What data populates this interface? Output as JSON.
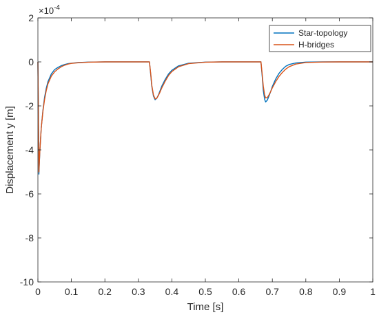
{
  "chart_data": {
    "type": "line",
    "title": "",
    "xlabel": "Time [s]",
    "ylabel": "Displacement y [m]",
    "xlim": [
      0,
      1
    ],
    "ylim": [
      -10,
      2
    ],
    "y_exponent_label": "×10",
    "y_exponent_power": "-4",
    "xticks": [
      0,
      0.1,
      0.2,
      0.3,
      0.4,
      0.5,
      0.6,
      0.7,
      0.8,
      0.9,
      1
    ],
    "xtick_labels": [
      "0",
      "0.1",
      "0.2",
      "0.3",
      "0.4",
      "0.5",
      "0.6",
      "0.7",
      "0.8",
      "0.9",
      "1"
    ],
    "yticks": [
      2,
      0,
      -2,
      -4,
      -6,
      -8,
      -10
    ],
    "ytick_labels": [
      "2",
      "0",
      "-2",
      "-4",
      "-6",
      "-8",
      "-10"
    ],
    "grid": false,
    "legend_position": "top-right",
    "series": [
      {
        "name": "Star-topology",
        "color": "#0072BD",
        "x": [
          0,
          0.003,
          0.006,
          0.01,
          0.015,
          0.02,
          0.025,
          0.03,
          0.04,
          0.05,
          0.06,
          0.07,
          0.08,
          0.09,
          0.1,
          0.12,
          0.15,
          0.2,
          0.25,
          0.3,
          0.333,
          0.337,
          0.34,
          0.345,
          0.35,
          0.355,
          0.36,
          0.365,
          0.37,
          0.38,
          0.39,
          0.4,
          0.42,
          0.45,
          0.5,
          0.55,
          0.6,
          0.65,
          0.666,
          0.67,
          0.673,
          0.677,
          0.68,
          0.685,
          0.69,
          0.695,
          0.7,
          0.71,
          0.72,
          0.73,
          0.74,
          0.75,
          0.77,
          0.8,
          0.85,
          0.9,
          1.0
        ],
        "y": [
          0,
          -5.1,
          -4.0,
          -3.0,
          -2.2,
          -1.6,
          -1.2,
          -0.9,
          -0.55,
          -0.35,
          -0.25,
          -0.17,
          -0.12,
          -0.08,
          -0.06,
          -0.03,
          -0.01,
          0,
          0,
          0,
          0,
          -0.6,
          -1.1,
          -1.55,
          -1.72,
          -1.65,
          -1.5,
          -1.3,
          -1.1,
          -0.8,
          -0.55,
          -0.38,
          -0.18,
          -0.06,
          -0.01,
          0,
          0,
          0,
          0,
          -0.7,
          -1.3,
          -1.7,
          -1.82,
          -1.74,
          -1.55,
          -1.35,
          -1.12,
          -0.78,
          -0.52,
          -0.34,
          -0.2,
          -0.12,
          -0.05,
          -0.01,
          0,
          0,
          0
        ]
      },
      {
        "name": "H-bridges",
        "color": "#D95319",
        "x": [
          0,
          0.003,
          0.006,
          0.01,
          0.015,
          0.02,
          0.025,
          0.03,
          0.04,
          0.05,
          0.06,
          0.07,
          0.08,
          0.09,
          0.1,
          0.12,
          0.15,
          0.2,
          0.25,
          0.3,
          0.333,
          0.337,
          0.34,
          0.345,
          0.35,
          0.355,
          0.36,
          0.365,
          0.37,
          0.38,
          0.39,
          0.4,
          0.42,
          0.45,
          0.5,
          0.55,
          0.6,
          0.65,
          0.666,
          0.67,
          0.673,
          0.677,
          0.68,
          0.685,
          0.69,
          0.695,
          0.7,
          0.71,
          0.72,
          0.73,
          0.74,
          0.75,
          0.77,
          0.8,
          0.85,
          0.9,
          1.0
        ],
        "y": [
          0,
          -5.0,
          -4.0,
          -3.0,
          -2.25,
          -1.7,
          -1.3,
          -1.0,
          -0.65,
          -0.45,
          -0.32,
          -0.22,
          -0.15,
          -0.1,
          -0.07,
          -0.04,
          -0.015,
          0,
          0,
          0,
          0,
          -0.55,
          -1.05,
          -1.5,
          -1.68,
          -1.65,
          -1.52,
          -1.36,
          -1.18,
          -0.88,
          -0.62,
          -0.44,
          -0.22,
          -0.08,
          -0.015,
          0,
          0,
          0,
          0,
          -0.6,
          -1.1,
          -1.5,
          -1.64,
          -1.62,
          -1.5,
          -1.35,
          -1.18,
          -0.9,
          -0.66,
          -0.48,
          -0.33,
          -0.22,
          -0.1,
          -0.03,
          -0.005,
          0,
          0
        ]
      }
    ]
  }
}
